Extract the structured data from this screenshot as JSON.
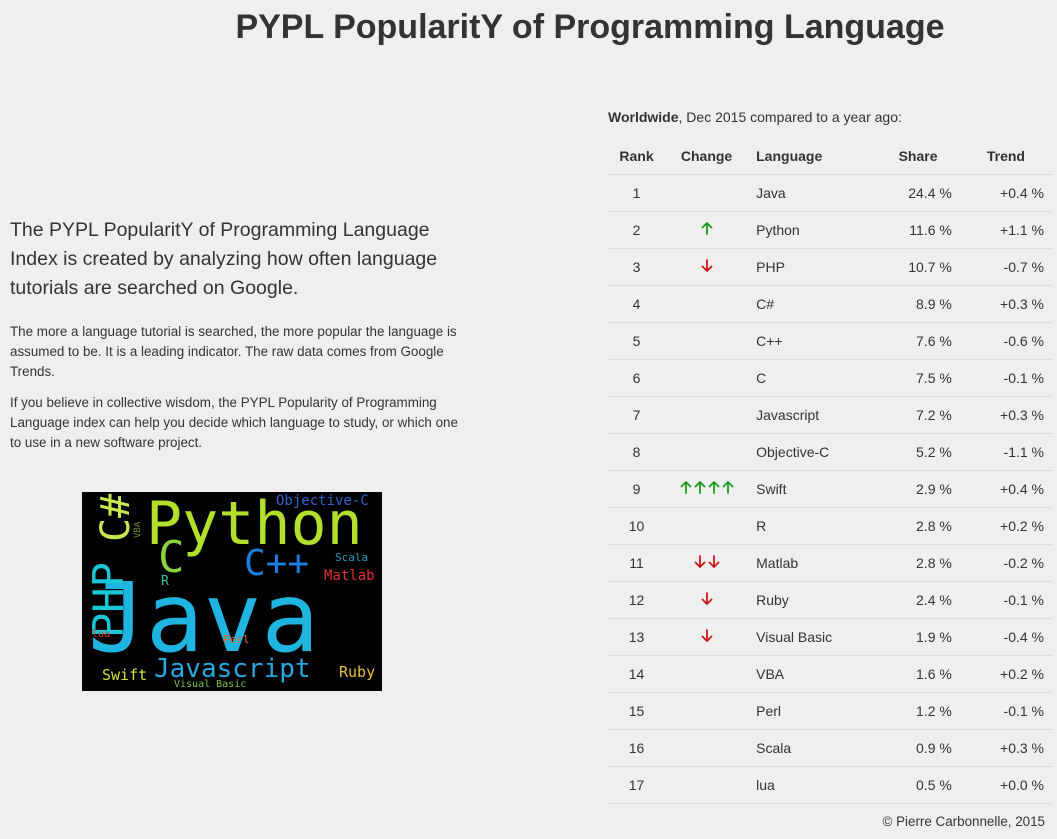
{
  "page": {
    "title": "PYPL PopularitY of Programming Language"
  },
  "intro": {
    "lead": "The PYPL PopularitY of Programming Language Index is created by analyzing how often language tutorials are searched on Google.",
    "paragraph1": "The more a language tutorial is searched, the more popular the language is assumed to be. It is a leading indicator. The raw data comes from Google Trends.",
    "paragraph2": "If you believe in collective wisdom, the PYPL Popularity of Programming Language index can help you decide which language to study, or which one to use in a new software project."
  },
  "word_cloud": {
    "words": [
      {
        "text": "Java",
        "color": "#1fb5e0"
      },
      {
        "text": "Python",
        "color": "#b3e02a"
      },
      {
        "text": "C#",
        "color": "#c7e84f"
      },
      {
        "text": "PHP",
        "color": "#19c7d6"
      },
      {
        "text": "C",
        "color": "#8ad33a"
      },
      {
        "text": "C++",
        "color": "#1c7fe0"
      },
      {
        "text": "Javascript",
        "color": "#29a9df"
      },
      {
        "text": "Objective-C",
        "color": "#2f63c9"
      },
      {
        "text": "Swift",
        "color": "#d6e23c"
      },
      {
        "text": "Ruby",
        "color": "#e8c13a"
      },
      {
        "text": "Matlab",
        "color": "#e03131"
      },
      {
        "text": "Scala",
        "color": "#1e9fbf"
      },
      {
        "text": "R",
        "color": "#36c0a5"
      },
      {
        "text": "VBA",
        "color": "#6f8f2a"
      },
      {
        "text": "Perl",
        "color": "#e06a2a"
      },
      {
        "text": "lua",
        "color": "#d8382e"
      },
      {
        "text": "Visual Basic",
        "color": "#7ac24a"
      }
    ]
  },
  "table": {
    "caption_bold": "Worldwide",
    "caption_rest": ", Dec 2015 compared to a year ago:",
    "headers": [
      "Rank",
      "Change",
      "Language",
      "Share",
      "Trend"
    ],
    "up_color": "#1a9a1a",
    "down_color": "#c81818",
    "rows": [
      {
        "rank": "1",
        "change": {
          "dir": "",
          "count": 0
        },
        "language": "Java",
        "share": "24.4 %",
        "trend": "+0.4 %"
      },
      {
        "rank": "2",
        "change": {
          "dir": "up",
          "count": 1
        },
        "language": "Python",
        "share": "11.6 %",
        "trend": "+1.1 %"
      },
      {
        "rank": "3",
        "change": {
          "dir": "down",
          "count": 1
        },
        "language": "PHP",
        "share": "10.7 %",
        "trend": "-0.7 %"
      },
      {
        "rank": "4",
        "change": {
          "dir": "",
          "count": 0
        },
        "language": "C#",
        "share": "8.9 %",
        "trend": "+0.3 %"
      },
      {
        "rank": "5",
        "change": {
          "dir": "",
          "count": 0
        },
        "language": "C++",
        "share": "7.6 %",
        "trend": "-0.6 %"
      },
      {
        "rank": "6",
        "change": {
          "dir": "",
          "count": 0
        },
        "language": "C",
        "share": "7.5 %",
        "trend": "-0.1 %"
      },
      {
        "rank": "7",
        "change": {
          "dir": "",
          "count": 0
        },
        "language": "Javascript",
        "share": "7.2 %",
        "trend": "+0.3 %"
      },
      {
        "rank": "8",
        "change": {
          "dir": "",
          "count": 0
        },
        "language": "Objective-C",
        "share": "5.2 %",
        "trend": "-1.1 %"
      },
      {
        "rank": "9",
        "change": {
          "dir": "up",
          "count": 4
        },
        "language": "Swift",
        "share": "2.9 %",
        "trend": "+0.4 %"
      },
      {
        "rank": "10",
        "change": {
          "dir": "",
          "count": 0
        },
        "language": "R",
        "share": "2.8 %",
        "trend": "+0.2 %"
      },
      {
        "rank": "11",
        "change": {
          "dir": "down",
          "count": 2
        },
        "language": "Matlab",
        "share": "2.8 %",
        "trend": "-0.2 %"
      },
      {
        "rank": "12",
        "change": {
          "dir": "down",
          "count": 1
        },
        "language": "Ruby",
        "share": "2.4 %",
        "trend": "-0.1 %"
      },
      {
        "rank": "13",
        "change": {
          "dir": "down",
          "count": 1
        },
        "language": "Visual Basic",
        "share": "1.9 %",
        "trend": "-0.4 %"
      },
      {
        "rank": "14",
        "change": {
          "dir": "",
          "count": 0
        },
        "language": "VBA",
        "share": "1.6 %",
        "trend": "+0.2 %"
      },
      {
        "rank": "15",
        "change": {
          "dir": "",
          "count": 0
        },
        "language": "Perl",
        "share": "1.2 %",
        "trend": "-0.1 %"
      },
      {
        "rank": "16",
        "change": {
          "dir": "",
          "count": 0
        },
        "language": "Scala",
        "share": "0.9 %",
        "trend": "+0.3 %"
      },
      {
        "rank": "17",
        "change": {
          "dir": "",
          "count": 0
        },
        "language": "lua",
        "share": "0.5 %",
        "trend": "+0.0 %"
      }
    ]
  },
  "footer": {
    "copyright": "© Pierre Carbonnelle, 2015"
  }
}
